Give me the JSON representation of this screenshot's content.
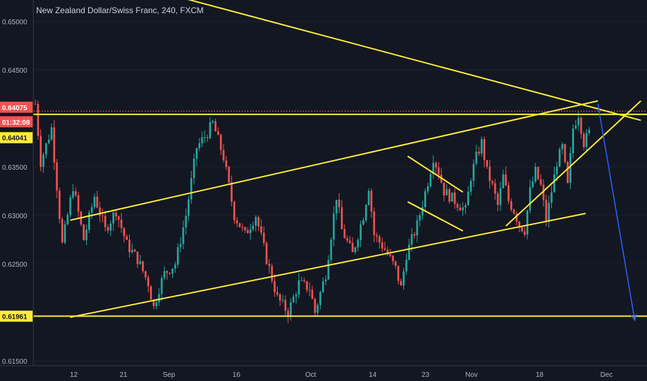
{
  "header": {
    "title": "New Zealand Dollar/Swiss Franc, 240, FXCM"
  },
  "colors": {
    "background": "#131722",
    "up": "#26a69a",
    "down": "#ef5350",
    "trendline": "#ffeb3b",
    "projection_arrow": "#2962ff",
    "price_line": "#ef5350"
  },
  "chart_data": {
    "type": "candlestick",
    "title": "New Zealand Dollar/Swiss Franc, 240, FXCM",
    "ylim": [
      0.6145,
      0.6522
    ],
    "y_ticks": [
      "0.65000",
      "0.64500",
      "0.63500",
      "0.63000",
      "0.62500",
      "0.61500"
    ],
    "x_ticks": [
      "12",
      "21",
      "Sep",
      "16",
      "Oct",
      "14",
      "23",
      "Nov",
      "18",
      "Dec"
    ],
    "price_labels": {
      "last_price": "0.64075",
      "countdown": "01:32:08",
      "level_high": "0.64041",
      "level_low": "0.61961"
    },
    "horizontal_levels": [
      0.64041,
      0.61961
    ],
    "last_price": 0.64075,
    "price_path": [
      [
        0,
        0.6415
      ],
      [
        2,
        0.6355
      ],
      [
        6,
        0.639
      ],
      [
        10,
        0.627
      ],
      [
        14,
        0.633
      ],
      [
        18,
        0.6275
      ],
      [
        22,
        0.632
      ],
      [
        26,
        0.6285
      ],
      [
        30,
        0.6305
      ],
      [
        34,
        0.627
      ],
      [
        38,
        0.6255
      ],
      [
        42,
        0.623
      ],
      [
        44,
        0.6205
      ],
      [
        46,
        0.6225
      ],
      [
        48,
        0.624
      ],
      [
        52,
        0.625
      ],
      [
        56,
        0.63
      ],
      [
        60,
        0.637
      ],
      [
        64,
        0.6385
      ],
      [
        66,
        0.6395
      ],
      [
        70,
        0.636
      ],
      [
        74,
        0.63
      ],
      [
        78,
        0.628
      ],
      [
        82,
        0.63
      ],
      [
        86,
        0.6255
      ],
      [
        90,
        0.6215
      ],
      [
        94,
        0.62
      ],
      [
        98,
        0.623
      ],
      [
        102,
        0.6225
      ],
      [
        104,
        0.62
      ],
      [
        108,
        0.624
      ],
      [
        110,
        0.628
      ],
      [
        112,
        0.632
      ],
      [
        114,
        0.6285
      ],
      [
        118,
        0.626
      ],
      [
        122,
        0.63
      ],
      [
        124,
        0.633
      ],
      [
        126,
        0.628
      ],
      [
        130,
        0.6265
      ],
      [
        134,
        0.6245
      ],
      [
        136,
        0.6225
      ],
      [
        138,
        0.626
      ],
      [
        142,
        0.629
      ],
      [
        146,
        0.6335
      ],
      [
        148,
        0.636
      ],
      [
        150,
        0.6345
      ],
      [
        152,
        0.6325
      ],
      [
        154,
        0.632
      ],
      [
        158,
        0.631
      ],
      [
        160,
        0.6305
      ],
      [
        162,
        0.634
      ],
      [
        164,
        0.636
      ],
      [
        166,
        0.6375
      ],
      [
        168,
        0.6345
      ],
      [
        170,
        0.633
      ],
      [
        172,
        0.631
      ],
      [
        174,
        0.634
      ],
      [
        176,
        0.6315
      ],
      [
        178,
        0.6305
      ],
      [
        180,
        0.629
      ],
      [
        182,
        0.6285
      ],
      [
        184,
        0.6325
      ],
      [
        186,
        0.6345
      ],
      [
        188,
        0.633
      ],
      [
        190,
        0.6295
      ],
      [
        194,
        0.6355
      ],
      [
        196,
        0.637
      ],
      [
        198,
        0.633
      ],
      [
        200,
        0.639
      ],
      [
        202,
        0.6405
      ],
      [
        204,
        0.6375
      ],
      [
        206,
        0.6385
      ]
    ],
    "annotations": {
      "trend_lines": [
        [
          [
            0.06,
            0.6555
          ],
          [
            0.99,
            0.6398
          ]
        ],
        [
          [
            0.06,
            0.6295
          ],
          [
            0.92,
            0.6418
          ]
        ],
        [
          [
            0.06,
            0.6195
          ],
          [
            0.9,
            0.6302
          ]
        ],
        [
          [
            0.77,
            0.6289
          ],
          [
            0.99,
            0.6418
          ]
        ],
        [
          [
            0.61,
            0.6361
          ],
          [
            0.7,
            0.6324
          ]
        ],
        [
          [
            0.61,
            0.6314
          ],
          [
            0.7,
            0.6284
          ]
        ]
      ],
      "projection_arrow": [
        [
          0.92,
          0.6415
        ],
        [
          0.98,
          0.6192
        ]
      ]
    }
  }
}
